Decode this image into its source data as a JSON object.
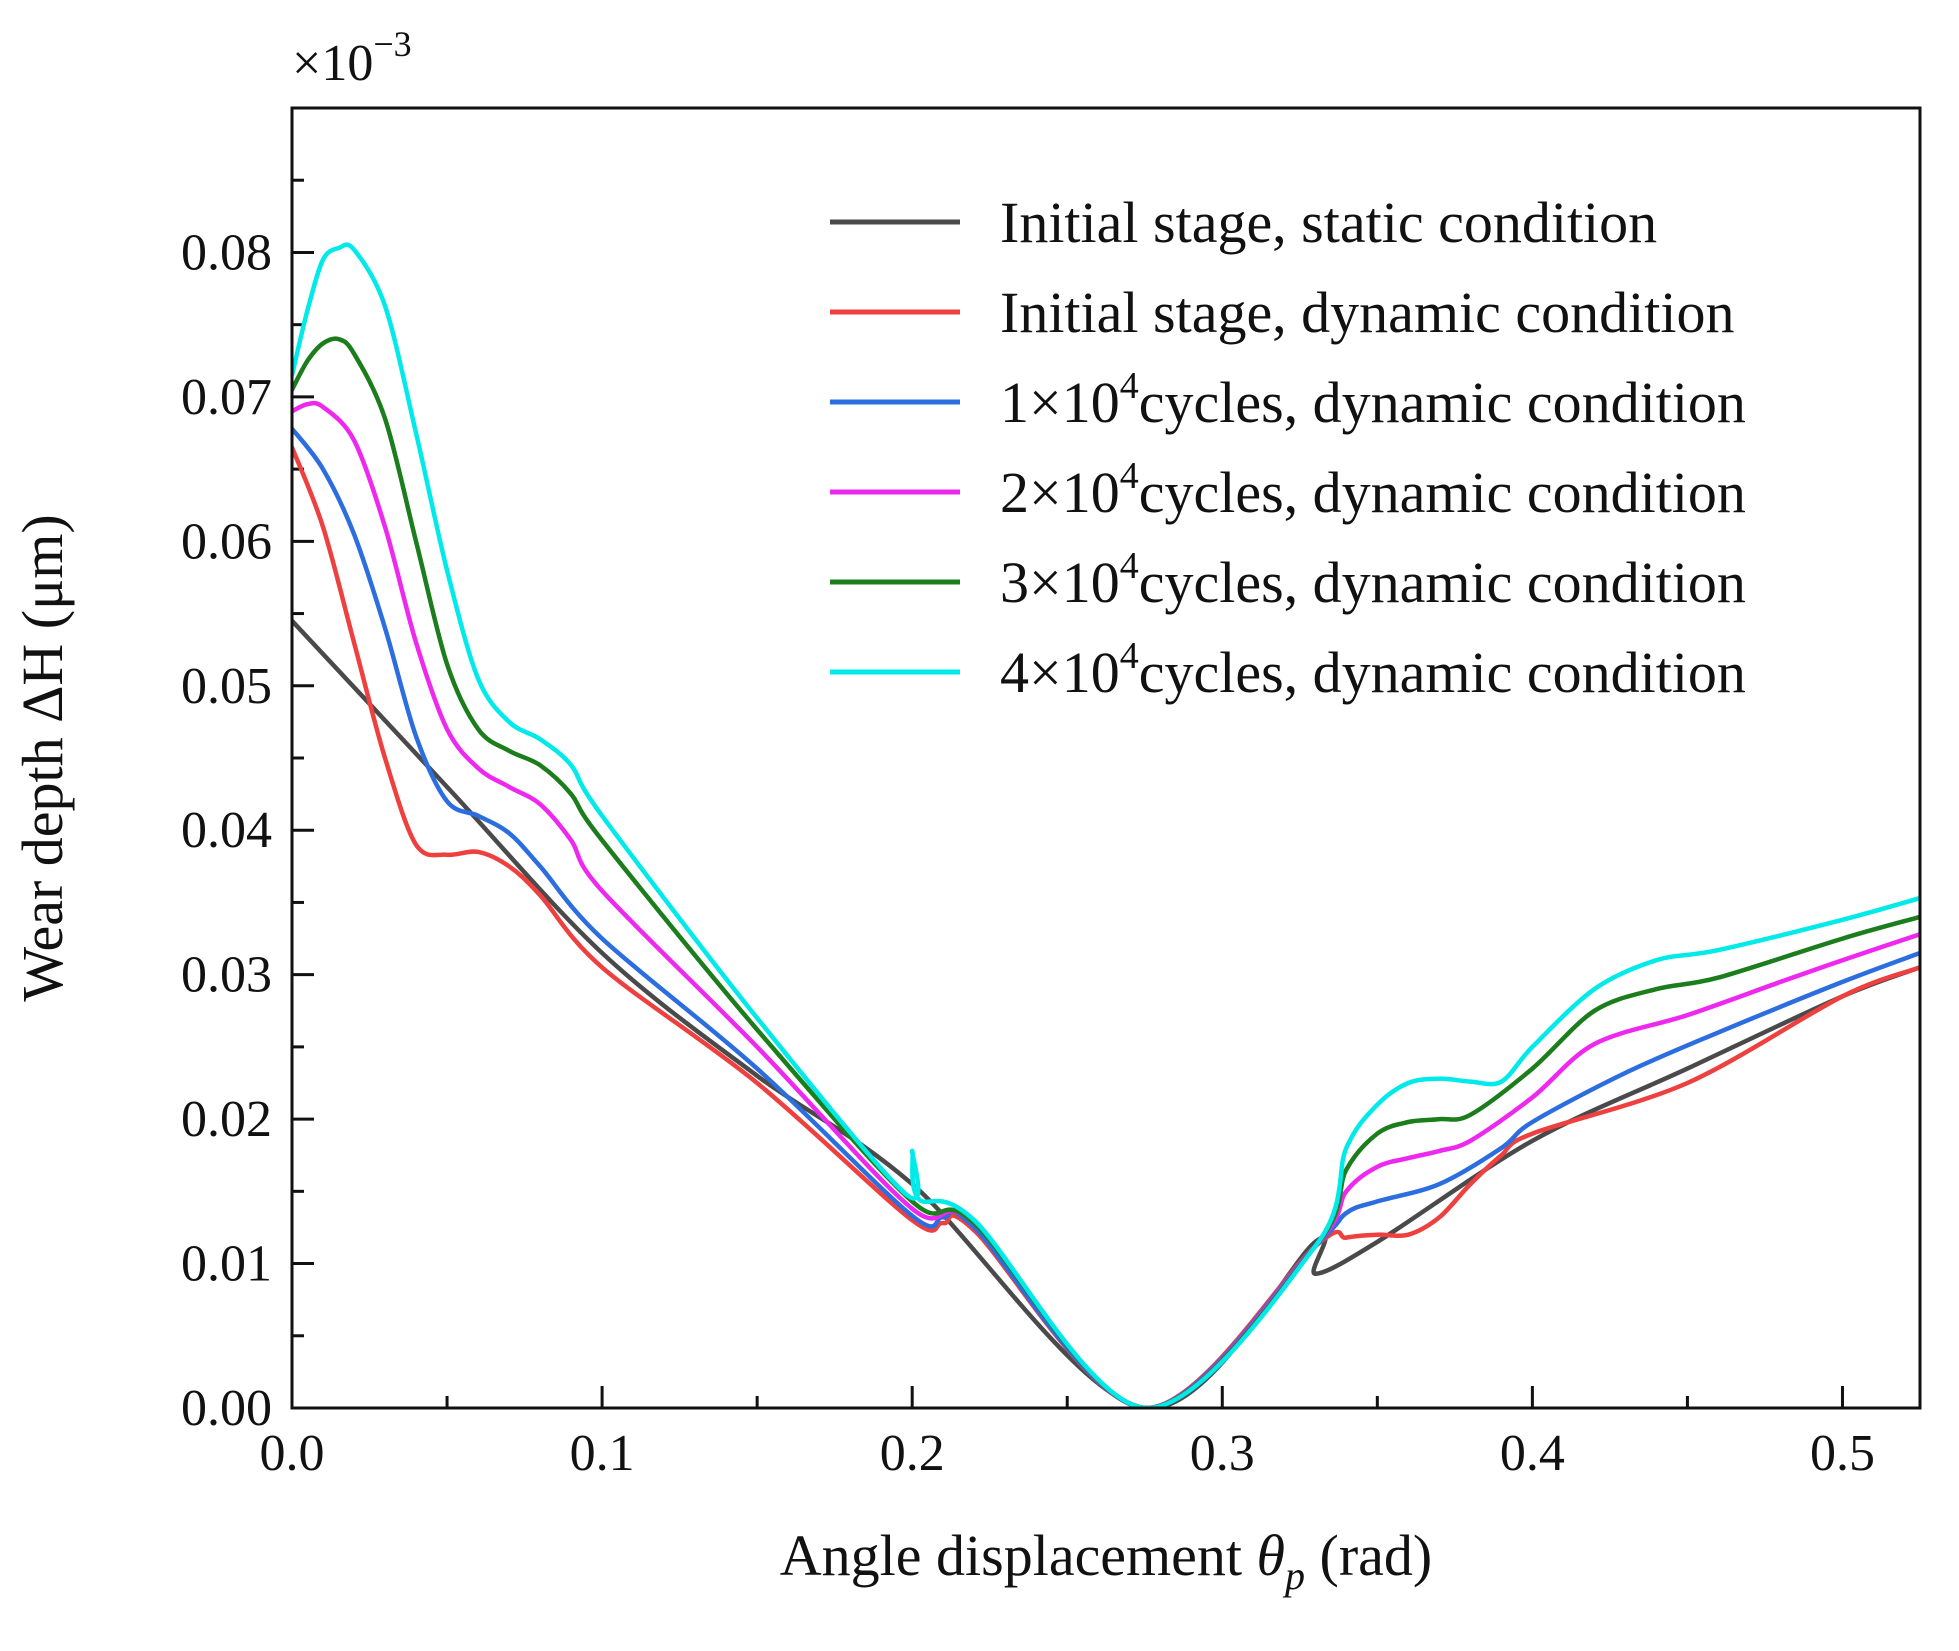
{
  "chart_data": {
    "type": "line",
    "title": "",
    "xlabel": "Angle displacement θp (rad)",
    "xlabel_parts": {
      "prefix": "Angle displacement ",
      "symbol": "θ",
      "subscript": "p",
      "suffix": " (rad)"
    },
    "ylabel": "Wear depth ΔH (μm)",
    "y_multiplier": {
      "base": "×10",
      "exponent": "−3"
    },
    "xlim": [
      0,
      0.525
    ],
    "ylim": [
      0,
      0.09
    ],
    "x_ticks": [
      {
        "value": 0.0,
        "label": "0.0"
      },
      {
        "value": 0.1,
        "label": "0.1"
      },
      {
        "value": 0.2,
        "label": "0.2"
      },
      {
        "value": 0.3,
        "label": "0.3"
      },
      {
        "value": 0.4,
        "label": "0.4"
      },
      {
        "value": 0.5,
        "label": "0.5"
      }
    ],
    "y_ticks": [
      {
        "value": 0.0,
        "label": "0.00"
      },
      {
        "value": 0.01,
        "label": "0.01"
      },
      {
        "value": 0.02,
        "label": "0.02"
      },
      {
        "value": 0.03,
        "label": "0.03"
      },
      {
        "value": 0.04,
        "label": "0.04"
      },
      {
        "value": 0.05,
        "label": "0.05"
      },
      {
        "value": 0.06,
        "label": "0.06"
      },
      {
        "value": 0.07,
        "label": "0.07"
      },
      {
        "value": 0.08,
        "label": "0.08"
      }
    ],
    "grid": false,
    "legend_position": "top-right",
    "series": [
      {
        "name": "Initial stage, static condition",
        "legend_prefix": "Initial stage, static condition",
        "legend_exp": "",
        "legend_suffix": "",
        "color": "#4a4a4a",
        "points": [
          [
            0,
            0.0545
          ],
          [
            0.05,
            0.043
          ],
          [
            0.1,
            0.0315
          ],
          [
            0.15,
            0.023
          ],
          [
            0.2,
            0.0155
          ],
          [
            0.275,
            0
          ],
          [
            0.33,
            0.0115
          ],
          [
            0.33,
            0.0093
          ],
          [
            0.35,
            0.0115
          ],
          [
            0.4,
            0.0185
          ],
          [
            0.45,
            0.0235
          ],
          [
            0.5,
            0.0285
          ],
          [
            0.525,
            0.0305
          ]
        ]
      },
      {
        "name": "Initial stage, dynamic condition",
        "legend_prefix": "Initial stage, dynamic condition",
        "legend_exp": "",
        "legend_suffix": "",
        "color": "#ef4040",
        "points": [
          [
            0,
            0.0665
          ],
          [
            0.01,
            0.061
          ],
          [
            0.02,
            0.053
          ],
          [
            0.03,
            0.045
          ],
          [
            0.04,
            0.039
          ],
          [
            0.05,
            0.0383
          ],
          [
            0.06,
            0.0385
          ],
          [
            0.07,
            0.0375
          ],
          [
            0.08,
            0.0355
          ],
          [
            0.1,
            0.0305
          ],
          [
            0.15,
            0.0225
          ],
          [
            0.2,
            0.013
          ],
          [
            0.21,
            0.0128
          ],
          [
            0.22,
            0.0123
          ],
          [
            0.275,
            0
          ],
          [
            0.33,
            0.0112
          ],
          [
            0.34,
            0.0118
          ],
          [
            0.35,
            0.012
          ],
          [
            0.36,
            0.012
          ],
          [
            0.37,
            0.0132
          ],
          [
            0.38,
            0.0155
          ],
          [
            0.39,
            0.0175
          ],
          [
            0.4,
            0.019
          ],
          [
            0.45,
            0.0225
          ],
          [
            0.5,
            0.0285
          ],
          [
            0.525,
            0.0305
          ]
        ]
      },
      {
        "name": "1×10^4 cycles, dynamic condition",
        "legend_prefix": "1×10",
        "legend_exp": "4",
        "legend_suffix": "cycles, dynamic condition",
        "color": "#2c6ee0",
        "points": [
          [
            0,
            0.0678
          ],
          [
            0.01,
            0.065
          ],
          [
            0.02,
            0.0605
          ],
          [
            0.03,
            0.054
          ],
          [
            0.04,
            0.0465
          ],
          [
            0.05,
            0.042
          ],
          [
            0.06,
            0.041
          ],
          [
            0.07,
            0.0398
          ],
          [
            0.08,
            0.0375
          ],
          [
            0.1,
            0.0325
          ],
          [
            0.15,
            0.0235
          ],
          [
            0.2,
            0.0133
          ],
          [
            0.21,
            0.0132
          ],
          [
            0.22,
            0.0125
          ],
          [
            0.275,
            0
          ],
          [
            0.33,
            0.0112
          ],
          [
            0.34,
            0.0135
          ],
          [
            0.35,
            0.0143
          ],
          [
            0.37,
            0.0155
          ],
          [
            0.39,
            0.018
          ],
          [
            0.4,
            0.0198
          ],
          [
            0.43,
            0.0232
          ],
          [
            0.46,
            0.026
          ],
          [
            0.5,
            0.0295
          ],
          [
            0.525,
            0.0315
          ]
        ]
      },
      {
        "name": "2×10^4 cycles, dynamic condition",
        "legend_prefix": "2×10",
        "legend_exp": "4",
        "legend_suffix": "cycles, dynamic condition",
        "color": "#ee28ee",
        "points": [
          [
            0,
            0.069
          ],
          [
            0.005,
            0.0695
          ],
          [
            0.01,
            0.0693
          ],
          [
            0.02,
            0.067
          ],
          [
            0.03,
            0.061
          ],
          [
            0.04,
            0.053
          ],
          [
            0.05,
            0.047
          ],
          [
            0.06,
            0.0443
          ],
          [
            0.07,
            0.043
          ],
          [
            0.08,
            0.0418
          ],
          [
            0.09,
            0.0393
          ],
          [
            0.1,
            0.0358
          ],
          [
            0.15,
            0.025
          ],
          [
            0.2,
            0.0138
          ],
          [
            0.22,
            0.0128
          ],
          [
            0.275,
            0
          ],
          [
            0.33,
            0.0112
          ],
          [
            0.34,
            0.015
          ],
          [
            0.35,
            0.0167
          ],
          [
            0.36,
            0.0173
          ],
          [
            0.37,
            0.0178
          ],
          [
            0.38,
            0.0185
          ],
          [
            0.4,
            0.0215
          ],
          [
            0.42,
            0.0252
          ],
          [
            0.45,
            0.0272
          ],
          [
            0.48,
            0.0295
          ],
          [
            0.5,
            0.031
          ],
          [
            0.525,
            0.0328
          ]
        ]
      },
      {
        "name": "3×10^4 cycles, dynamic condition",
        "legend_prefix": "3×10",
        "legend_exp": "4",
        "legend_suffix": "cycles, dynamic condition",
        "color": "#1c7d1c",
        "points": [
          [
            0,
            0.0705
          ],
          [
            0.005,
            0.0725
          ],
          [
            0.01,
            0.0737
          ],
          [
            0.015,
            0.074
          ],
          [
            0.02,
            0.073
          ],
          [
            0.03,
            0.0685
          ],
          [
            0.04,
            0.06
          ],
          [
            0.05,
            0.0515
          ],
          [
            0.06,
            0.047
          ],
          [
            0.07,
            0.0455
          ],
          [
            0.08,
            0.0445
          ],
          [
            0.09,
            0.0425
          ],
          [
            0.1,
            0.0393
          ],
          [
            0.15,
            0.0262
          ],
          [
            0.2,
            0.0143
          ],
          [
            0.22,
            0.0128
          ],
          [
            0.275,
            0
          ],
          [
            0.33,
            0.0112
          ],
          [
            0.34,
            0.0165
          ],
          [
            0.35,
            0.019
          ],
          [
            0.36,
            0.0198
          ],
          [
            0.37,
            0.02
          ],
          [
            0.38,
            0.0203
          ],
          [
            0.4,
            0.0235
          ],
          [
            0.42,
            0.0275
          ],
          [
            0.44,
            0.029
          ],
          [
            0.46,
            0.0298
          ],
          [
            0.5,
            0.0325
          ],
          [
            0.525,
            0.034
          ]
        ]
      },
      {
        "name": "4×10^4 cycles, dynamic condition",
        "legend_prefix": "4×10",
        "legend_exp": "4",
        "legend_suffix": "cycles, dynamic condition",
        "color": "#00eaea",
        "points": [
          [
            0,
            0.0715
          ],
          [
            0.005,
            0.076
          ],
          [
            0.01,
            0.0795
          ],
          [
            0.015,
            0.0803
          ],
          [
            0.02,
            0.0802
          ],
          [
            0.03,
            0.0763
          ],
          [
            0.04,
            0.0675
          ],
          [
            0.05,
            0.058
          ],
          [
            0.06,
            0.0505
          ],
          [
            0.07,
            0.0475
          ],
          [
            0.08,
            0.0463
          ],
          [
            0.09,
            0.0445
          ],
          [
            0.1,
            0.041
          ],
          [
            0.15,
            0.027
          ],
          [
            0.198,
            0.0148
          ],
          [
            0.2,
            0.0178
          ],
          [
            0.202,
            0.0145
          ],
          [
            0.22,
            0.013
          ],
          [
            0.275,
            0
          ],
          [
            0.33,
            0.0112
          ],
          [
            0.34,
            0.018
          ],
          [
            0.35,
            0.021
          ],
          [
            0.36,
            0.0225
          ],
          [
            0.37,
            0.0228
          ],
          [
            0.38,
            0.0226
          ],
          [
            0.39,
            0.0226
          ],
          [
            0.4,
            0.025
          ],
          [
            0.42,
            0.029
          ],
          [
            0.44,
            0.031
          ],
          [
            0.46,
            0.0317
          ],
          [
            0.5,
            0.0338
          ],
          [
            0.525,
            0.0353
          ]
        ]
      }
    ]
  }
}
